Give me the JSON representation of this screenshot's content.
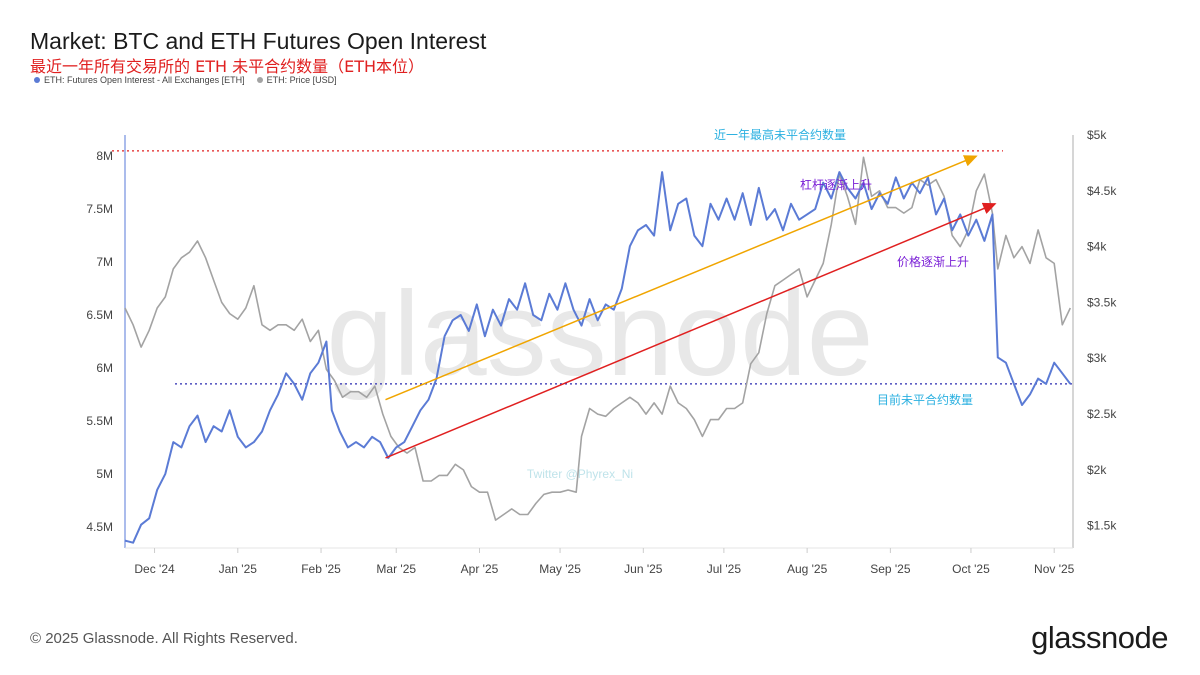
{
  "header": {
    "title": "Market: BTC and ETH Futures Open Interest",
    "subtitle": "最近一年所有交易所的 ETH 未平合约数量（ETH本位）"
  },
  "legend": [
    {
      "label": "ETH: Futures Open Interest - All Exchanges [ETH]",
      "color": "#5b7bd5"
    },
    {
      "label": "ETH: Price [USD]",
      "color": "#a3a3a3"
    }
  ],
  "footer": {
    "copyright": "© 2025 Glassnode. All Rights Reserved.",
    "brand": "glassnode"
  },
  "watermark": "glassnode",
  "watermark_small": "Twitter @Phyrex_Ni",
  "chart_data": {
    "type": "line",
    "x_ticks": [
      "Dec '24",
      "Jan '25",
      "Feb '25",
      "Mar '25",
      "Apr '25",
      "May '25",
      "Jun '25",
      "Jul '25",
      "Aug '25",
      "Sep '25",
      "Oct '25",
      "Nov '25"
    ],
    "y_left_ticks": [
      "4.5M",
      "5M",
      "5.5M",
      "6M",
      "6.5M",
      "7M",
      "7.5M",
      "8M"
    ],
    "y_right_ticks": [
      "$1.5k",
      "$2k",
      "$2.5k",
      "$3k",
      "$3.5k",
      "$4k",
      "$4.5k",
      "$5k"
    ],
    "y_left_range": [
      4.3,
      8.2
    ],
    "y_right_range": [
      1.3,
      5.0
    ],
    "x_range": [
      "2024-11-20",
      "2025-11-08"
    ],
    "series": [
      {
        "name": "ETH: Futures Open Interest - All Exchanges [ETH]",
        "axis": "left",
        "unit": "M",
        "color": "#5b7bd5",
        "points": [
          [
            "2024-11-20",
            4.37
          ],
          [
            "2024-11-23",
            4.35
          ],
          [
            "2024-11-26",
            4.52
          ],
          [
            "2024-11-29",
            4.58
          ],
          [
            "2024-12-02",
            4.85
          ],
          [
            "2024-12-05",
            5.0
          ],
          [
            "2024-12-08",
            5.3
          ],
          [
            "2024-12-11",
            5.25
          ],
          [
            "2024-12-14",
            5.45
          ],
          [
            "2024-12-17",
            5.55
          ],
          [
            "2024-12-20",
            5.3
          ],
          [
            "2024-12-23",
            5.45
          ],
          [
            "2024-12-26",
            5.4
          ],
          [
            "2024-12-29",
            5.6
          ],
          [
            "2025-01-01",
            5.35
          ],
          [
            "2025-01-04",
            5.25
          ],
          [
            "2025-01-07",
            5.3
          ],
          [
            "2025-01-10",
            5.4
          ],
          [
            "2025-01-13",
            5.6
          ],
          [
            "2025-01-16",
            5.75
          ],
          [
            "2025-01-19",
            5.95
          ],
          [
            "2025-01-22",
            5.85
          ],
          [
            "2025-01-25",
            5.7
          ],
          [
            "2025-01-28",
            5.95
          ],
          [
            "2025-01-31",
            6.05
          ],
          [
            "2025-02-03",
            6.25
          ],
          [
            "2025-02-05",
            5.6
          ],
          [
            "2025-02-08",
            5.4
          ],
          [
            "2025-02-11",
            5.25
          ],
          [
            "2025-02-14",
            5.3
          ],
          [
            "2025-02-17",
            5.25
          ],
          [
            "2025-02-20",
            5.35
          ],
          [
            "2025-02-23",
            5.3
          ],
          [
            "2025-02-26",
            5.15
          ],
          [
            "2025-03-01",
            5.25
          ],
          [
            "2025-03-04",
            5.3
          ],
          [
            "2025-03-07",
            5.45
          ],
          [
            "2025-03-10",
            5.6
          ],
          [
            "2025-03-13",
            5.7
          ],
          [
            "2025-03-16",
            5.9
          ],
          [
            "2025-03-19",
            6.3
          ],
          [
            "2025-03-22",
            6.45
          ],
          [
            "2025-03-25",
            6.5
          ],
          [
            "2025-03-28",
            6.35
          ],
          [
            "2025-03-31",
            6.6
          ],
          [
            "2025-04-03",
            6.3
          ],
          [
            "2025-04-06",
            6.55
          ],
          [
            "2025-04-09",
            6.4
          ],
          [
            "2025-04-12",
            6.65
          ],
          [
            "2025-04-15",
            6.55
          ],
          [
            "2025-04-18",
            6.8
          ],
          [
            "2025-04-21",
            6.5
          ],
          [
            "2025-04-24",
            6.45
          ],
          [
            "2025-04-27",
            6.7
          ],
          [
            "2025-04-30",
            6.55
          ],
          [
            "2025-05-03",
            6.8
          ],
          [
            "2025-05-06",
            6.55
          ],
          [
            "2025-05-09",
            6.4
          ],
          [
            "2025-05-12",
            6.65
          ],
          [
            "2025-05-15",
            6.45
          ],
          [
            "2025-05-18",
            6.6
          ],
          [
            "2025-05-21",
            6.55
          ],
          [
            "2025-05-24",
            6.75
          ],
          [
            "2025-05-27",
            7.15
          ],
          [
            "2025-05-30",
            7.3
          ],
          [
            "2025-06-02",
            7.35
          ],
          [
            "2025-06-05",
            7.25
          ],
          [
            "2025-06-08",
            7.85
          ],
          [
            "2025-06-11",
            7.3
          ],
          [
            "2025-06-14",
            7.55
          ],
          [
            "2025-06-17",
            7.6
          ],
          [
            "2025-06-20",
            7.25
          ],
          [
            "2025-06-23",
            7.15
          ],
          [
            "2025-06-26",
            7.55
          ],
          [
            "2025-06-29",
            7.4
          ],
          [
            "2025-07-02",
            7.6
          ],
          [
            "2025-07-05",
            7.4
          ],
          [
            "2025-07-08",
            7.65
          ],
          [
            "2025-07-11",
            7.35
          ],
          [
            "2025-07-14",
            7.7
          ],
          [
            "2025-07-17",
            7.4
          ],
          [
            "2025-07-20",
            7.5
          ],
          [
            "2025-07-23",
            7.3
          ],
          [
            "2025-07-26",
            7.55
          ],
          [
            "2025-07-29",
            7.4
          ],
          [
            "2025-08-01",
            7.45
          ],
          [
            "2025-08-04",
            7.5
          ],
          [
            "2025-08-07",
            7.75
          ],
          [
            "2025-08-10",
            7.6
          ],
          [
            "2025-08-13",
            7.85
          ],
          [
            "2025-08-16",
            7.7
          ],
          [
            "2025-08-19",
            7.6
          ],
          [
            "2025-08-22",
            7.75
          ],
          [
            "2025-08-25",
            7.5
          ],
          [
            "2025-08-28",
            7.65
          ],
          [
            "2025-08-31",
            7.55
          ],
          [
            "2025-09-03",
            7.8
          ],
          [
            "2025-09-06",
            7.6
          ],
          [
            "2025-09-09",
            7.75
          ],
          [
            "2025-09-12",
            7.65
          ],
          [
            "2025-09-15",
            7.8
          ],
          [
            "2025-09-18",
            7.45
          ],
          [
            "2025-09-21",
            7.6
          ],
          [
            "2025-09-24",
            7.3
          ],
          [
            "2025-09-27",
            7.45
          ],
          [
            "2025-09-30",
            7.25
          ],
          [
            "2025-10-03",
            7.4
          ],
          [
            "2025-10-06",
            7.2
          ],
          [
            "2025-10-09",
            7.45
          ],
          [
            "2025-10-11",
            6.1
          ],
          [
            "2025-10-14",
            6.05
          ],
          [
            "2025-10-17",
            5.85
          ],
          [
            "2025-10-20",
            5.65
          ],
          [
            "2025-10-23",
            5.75
          ],
          [
            "2025-10-26",
            5.9
          ],
          [
            "2025-10-29",
            5.85
          ],
          [
            "2025-11-01",
            6.05
          ],
          [
            "2025-11-04",
            5.95
          ],
          [
            "2025-11-07",
            5.85
          ]
        ]
      },
      {
        "name": "ETH: Price [USD]",
        "axis": "right",
        "unit": "USD",
        "color": "#a3a3a3",
        "points": [
          [
            "2024-11-20",
            3450
          ],
          [
            "2024-11-23",
            3300
          ],
          [
            "2024-11-26",
            3100
          ],
          [
            "2024-11-29",
            3250
          ],
          [
            "2024-12-02",
            3450
          ],
          [
            "2024-12-05",
            3550
          ],
          [
            "2024-12-08",
            3800
          ],
          [
            "2024-12-11",
            3900
          ],
          [
            "2024-12-14",
            3950
          ],
          [
            "2024-12-17",
            4050
          ],
          [
            "2024-12-20",
            3900
          ],
          [
            "2024-12-23",
            3700
          ],
          [
            "2024-12-26",
            3500
          ],
          [
            "2024-12-29",
            3400
          ],
          [
            "2025-01-01",
            3350
          ],
          [
            "2025-01-04",
            3450
          ],
          [
            "2025-01-07",
            3650
          ],
          [
            "2025-01-10",
            3300
          ],
          [
            "2025-01-13",
            3250
          ],
          [
            "2025-01-16",
            3300
          ],
          [
            "2025-01-19",
            3300
          ],
          [
            "2025-01-22",
            3250
          ],
          [
            "2025-01-25",
            3350
          ],
          [
            "2025-01-28",
            3150
          ],
          [
            "2025-01-31",
            3250
          ],
          [
            "2025-02-03",
            2900
          ],
          [
            "2025-02-06",
            2800
          ],
          [
            "2025-02-09",
            2650
          ],
          [
            "2025-02-12",
            2700
          ],
          [
            "2025-02-15",
            2700
          ],
          [
            "2025-02-18",
            2650
          ],
          [
            "2025-02-21",
            2750
          ],
          [
            "2025-02-24",
            2500
          ],
          [
            "2025-02-27",
            2300
          ],
          [
            "2025-03-02",
            2200
          ],
          [
            "2025-03-05",
            2150
          ],
          [
            "2025-03-08",
            2200
          ],
          [
            "2025-03-11",
            1900
          ],
          [
            "2025-03-14",
            1900
          ],
          [
            "2025-03-17",
            1950
          ],
          [
            "2025-03-20",
            1950
          ],
          [
            "2025-03-23",
            2050
          ],
          [
            "2025-03-26",
            2000
          ],
          [
            "2025-03-29",
            1850
          ],
          [
            "2025-04-01",
            1800
          ],
          [
            "2025-04-04",
            1800
          ],
          [
            "2025-04-07",
            1550
          ],
          [
            "2025-04-10",
            1600
          ],
          [
            "2025-04-13",
            1650
          ],
          [
            "2025-04-16",
            1600
          ],
          [
            "2025-04-19",
            1600
          ],
          [
            "2025-04-22",
            1700
          ],
          [
            "2025-04-25",
            1780
          ],
          [
            "2025-04-28",
            1800
          ],
          [
            "2025-05-01",
            1800
          ],
          [
            "2025-05-04",
            1820
          ],
          [
            "2025-05-07",
            1800
          ],
          [
            "2025-05-09",
            2300
          ],
          [
            "2025-05-12",
            2550
          ],
          [
            "2025-05-15",
            2500
          ],
          [
            "2025-05-18",
            2480
          ],
          [
            "2025-05-21",
            2550
          ],
          [
            "2025-05-24",
            2600
          ],
          [
            "2025-05-27",
            2650
          ],
          [
            "2025-05-30",
            2600
          ],
          [
            "2025-06-02",
            2500
          ],
          [
            "2025-06-05",
            2600
          ],
          [
            "2025-06-08",
            2500
          ],
          [
            "2025-06-11",
            2750
          ],
          [
            "2025-06-14",
            2600
          ],
          [
            "2025-06-17",
            2550
          ],
          [
            "2025-06-20",
            2450
          ],
          [
            "2025-06-23",
            2300
          ],
          [
            "2025-06-26",
            2450
          ],
          [
            "2025-06-29",
            2450
          ],
          [
            "2025-07-02",
            2550
          ],
          [
            "2025-07-05",
            2550
          ],
          [
            "2025-07-08",
            2600
          ],
          [
            "2025-07-11",
            2950
          ],
          [
            "2025-07-14",
            3050
          ],
          [
            "2025-07-17",
            3400
          ],
          [
            "2025-07-20",
            3650
          ],
          [
            "2025-07-23",
            3700
          ],
          [
            "2025-07-26",
            3750
          ],
          [
            "2025-07-29",
            3800
          ],
          [
            "2025-08-01",
            3550
          ],
          [
            "2025-08-04",
            3700
          ],
          [
            "2025-08-07",
            3850
          ],
          [
            "2025-08-10",
            4200
          ],
          [
            "2025-08-13",
            4650
          ],
          [
            "2025-08-16",
            4450
          ],
          [
            "2025-08-19",
            4200
          ],
          [
            "2025-08-22",
            4800
          ],
          [
            "2025-08-25",
            4450
          ],
          [
            "2025-08-28",
            4500
          ],
          [
            "2025-08-31",
            4350
          ],
          [
            "2025-09-03",
            4350
          ],
          [
            "2025-09-06",
            4300
          ],
          [
            "2025-09-09",
            4350
          ],
          [
            "2025-09-12",
            4600
          ],
          [
            "2025-09-15",
            4550
          ],
          [
            "2025-09-18",
            4600
          ],
          [
            "2025-09-21",
            4450
          ],
          [
            "2025-09-24",
            4100
          ],
          [
            "2025-09-27",
            4000
          ],
          [
            "2025-09-30",
            4150
          ],
          [
            "2025-10-03",
            4500
          ],
          [
            "2025-10-06",
            4650
          ],
          [
            "2025-10-09",
            4300
          ],
          [
            "2025-10-11",
            3800
          ],
          [
            "2025-10-14",
            4100
          ],
          [
            "2025-10-17",
            3900
          ],
          [
            "2025-10-20",
            4000
          ],
          [
            "2025-10-23",
            3850
          ],
          [
            "2025-10-26",
            4150
          ],
          [
            "2025-10-29",
            3900
          ],
          [
            "2025-11-01",
            3850
          ],
          [
            "2025-11-04",
            3300
          ],
          [
            "2025-11-07",
            3450
          ]
        ]
      }
    ],
    "reference_lines": [
      {
        "label": "近一年最高未平合约数量",
        "value": 8.05,
        "axis": "left",
        "color": "#e02020",
        "style": "dotted",
        "label_color": "#2bb0e0"
      },
      {
        "label": "目前未平合约数量",
        "value": 5.85,
        "axis": "left",
        "color": "#2b2bb0",
        "style": "dotted",
        "label_color": "#2bb0e0"
      }
    ],
    "trend_arrows": [
      {
        "label": "杠杆逐渐上升",
        "from": [
          "2025-02-25",
          5.7
        ],
        "to": [
          "2025-10-03",
          8.0
        ],
        "color": "#f0a500",
        "label_color": "#7a1fd6"
      },
      {
        "label": "价格逐渐上升",
        "from": [
          "2025-02-25",
          5.15
        ],
        "to": [
          "2025-10-10",
          7.55
        ],
        "color": "#e02020",
        "label_color": "#7a1fd6"
      }
    ]
  }
}
